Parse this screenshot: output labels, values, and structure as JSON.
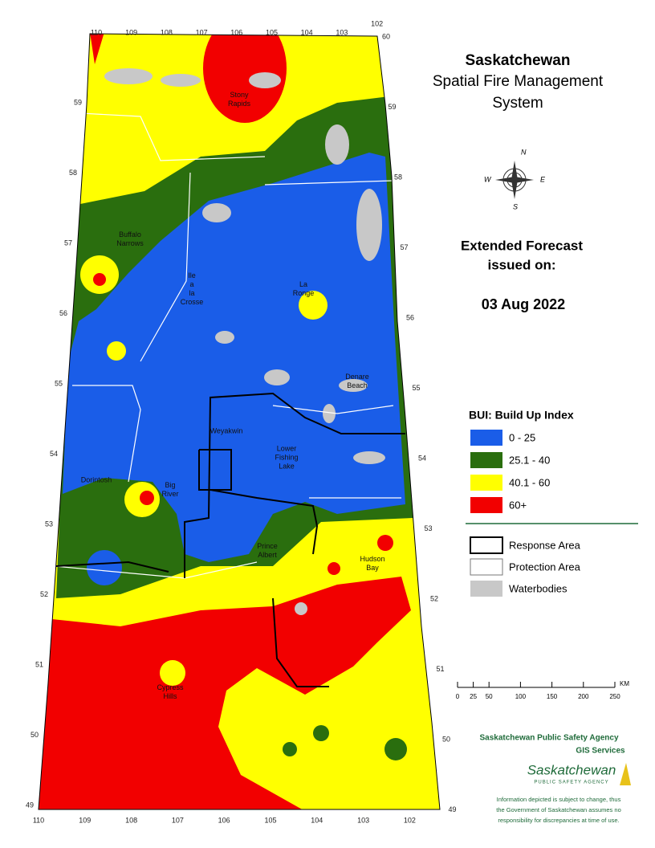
{
  "header": {
    "title": "Saskatchewan",
    "subtitle_lines": [
      "Spatial Fire Management",
      "System"
    ]
  },
  "forecast": {
    "lines": [
      "Extended Forecast",
      "issued on:"
    ],
    "date": "03 Aug 2022"
  },
  "legend": {
    "title": "BUI: Build Up Index",
    "classes": [
      {
        "label": "0 - 25",
        "color": "#1a5de8"
      },
      {
        "label": "25.1 - 40",
        "color": "#2a6e0e"
      },
      {
        "label": "40.1 - 60",
        "color": "#ffff00"
      },
      {
        "label": "60+",
        "color": "#f20000"
      }
    ]
  },
  "layers": [
    "Response Area",
    "Protection Area",
    "Waterbodies"
  ],
  "scale": {
    "ticks": [
      0,
      25,
      50,
      100,
      150,
      200,
      250
    ],
    "unit": "KM"
  },
  "credits": {
    "agency": "Saskatchewan Public Safety Agency",
    "unit": "GIS Services",
    "logo": "Saskatchewan",
    "logo_sub": "PUBLIC SAFETY AGENCY",
    "disclaimer": [
      "Information depicted is subject to change, thus",
      "the Government of Saskatchewan assumes no",
      "responsibility for discrepancies at time of use."
    ]
  },
  "map": {
    "longitudes": [
      "110",
      "109",
      "108",
      "107",
      "106",
      "105",
      "104",
      "103",
      "102"
    ],
    "latitudes_west": [
      "59",
      "58",
      "57",
      "56",
      "55",
      "54",
      "53",
      "52",
      "51",
      "50",
      "49"
    ],
    "latitudes_east": [
      "60",
      "59",
      "58",
      "57",
      "56",
      "55",
      "54",
      "53",
      "52",
      "51",
      "50",
      "49"
    ],
    "compass": [
      "N",
      "E",
      "S",
      "W"
    ],
    "places": [
      {
        "lines": [
          "Stony",
          "Rapids"
        ]
      },
      {
        "lines": [
          "Buffalo",
          "Narrows"
        ]
      },
      {
        "lines": [
          "Ile",
          "a",
          "la",
          "Crosse"
        ]
      },
      {
        "lines": [
          "La",
          "Ronge"
        ]
      },
      {
        "lines": [
          "Denare",
          "Beach"
        ]
      },
      {
        "lines": [
          "Weyakwin"
        ]
      },
      {
        "lines": [
          "Lower",
          "Fishing",
          "Lake"
        ]
      },
      {
        "lines": [
          "Dorintosh"
        ]
      },
      {
        "lines": [
          "Big",
          "River"
        ]
      },
      {
        "lines": [
          "Prince",
          "Albert"
        ]
      },
      {
        "lines": [
          "Hudson",
          "Bay"
        ]
      },
      {
        "lines": [
          "Cypress",
          "Hills"
        ]
      }
    ]
  }
}
